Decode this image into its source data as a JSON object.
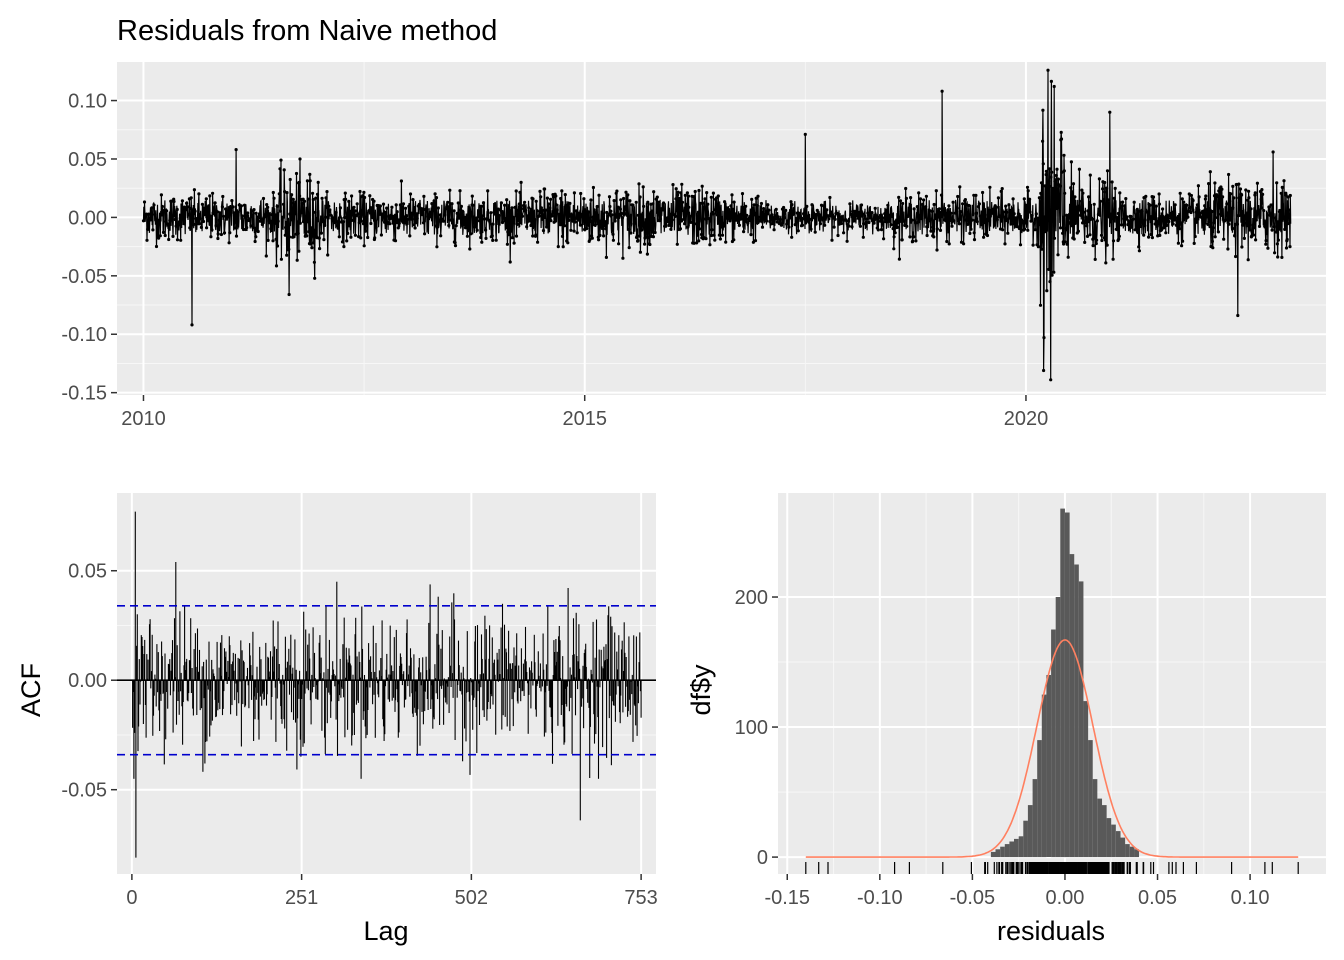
{
  "title": "Residuals from Naive method",
  "chart_data": [
    {
      "type": "line",
      "panel": "time-series",
      "title": "Residuals from Naive method",
      "xlabel": "",
      "ylabel": "",
      "xlim": [
        2009.7,
        2023.4
      ],
      "ylim": [
        -0.152,
        0.133
      ],
      "x_ticks": [
        2010,
        2015,
        2020
      ],
      "x_tick_labels": [
        "2010",
        "2015",
        "2020"
      ],
      "y_ticks": [
        -0.15,
        -0.1,
        -0.05,
        0.0,
        0.05,
        0.1
      ],
      "y_tick_labels": [
        "-0.15",
        "-0.10",
        "-0.05",
        "0.00",
        "0.05",
        "0.10"
      ],
      "grid": true,
      "x_range": [
        2010.0,
        2023.0
      ],
      "notable_points": [
        {
          "x": 2010.55,
          "y": -0.092
        },
        {
          "x": 2011.05,
          "y": 0.058
        },
        {
          "x": 2011.65,
          "y": -0.066
        },
        {
          "x": 2017.5,
          "y": 0.071
        },
        {
          "x": 2019.05,
          "y": 0.108
        },
        {
          "x": 2020.2,
          "y": -0.131
        },
        {
          "x": 2020.25,
          "y": 0.126
        },
        {
          "x": 2020.28,
          "y": -0.139
        },
        {
          "x": 2020.32,
          "y": 0.112
        },
        {
          "x": 2020.95,
          "y": 0.09
        },
        {
          "x": 2022.4,
          "y": -0.084
        },
        {
          "x": 2022.8,
          "y": 0.056
        }
      ]
    },
    {
      "type": "bar",
      "panel": "acf",
      "xlabel": "Lag",
      "ylabel": "ACF",
      "xlim": [
        -22,
        775
      ],
      "ylim": [
        -0.0885,
        0.0855
      ],
      "x_ticks": [
        0,
        251,
        502,
        753
      ],
      "x_tick_labels": [
        "0",
        "251",
        "502",
        "753"
      ],
      "y_ticks": [
        -0.05,
        0.0,
        0.05
      ],
      "y_tick_labels": [
        "-0.05",
        "0.00",
        "0.05"
      ],
      "confidence_bounds": [
        -0.034,
        0.034
      ],
      "max_lag": 753,
      "notable_lags": [
        {
          "lag": 5,
          "value": 0.077
        },
        {
          "lag": 6,
          "value": -0.081
        },
        {
          "lag": 65,
          "value": 0.054
        },
        {
          "lag": 663,
          "value": -0.064
        }
      ],
      "grid": true,
      "colors": {
        "bars": "#000000",
        "bounds": "#0000cc"
      }
    },
    {
      "type": "bar",
      "panel": "histogram",
      "xlabel": "residuals",
      "ylabel": "df$y",
      "xlim": [
        -0.155,
        0.141
      ],
      "ylim": [
        -13,
        280
      ],
      "x_ticks": [
        -0.15,
        -0.1,
        -0.05,
        0.0,
        0.05,
        0.1
      ],
      "x_tick_labels": [
        "-0.15",
        "-0.10",
        "-0.05",
        "0.00",
        "0.05",
        "0.10"
      ],
      "y_ticks": [
        0,
        100,
        200
      ],
      "y_tick_labels": [
        "0",
        "100",
        "200"
      ],
      "bin_width": 0.0025,
      "bin_centers": [
        -0.03875,
        -0.03625,
        -0.03375,
        -0.03125,
        -0.02875,
        -0.02625,
        -0.02375,
        -0.02125,
        -0.01875,
        -0.01625,
        -0.01375,
        -0.01125,
        -0.00875,
        -0.00625,
        -0.00375,
        -0.00125,
        0.00125,
        0.00375,
        0.00625,
        0.00875,
        0.01125,
        0.01375,
        0.01625,
        0.01875,
        0.02125,
        0.02375,
        0.02625,
        0.02875,
        0.03125,
        0.03375,
        0.03625,
        0.03875
      ],
      "counts": [
        4,
        6,
        8,
        10,
        12,
        14,
        16,
        28,
        40,
        60,
        90,
        125,
        140,
        175,
        200,
        268,
        265,
        233,
        225,
        212,
        120,
        90,
        60,
        45,
        40,
        30,
        25,
        20,
        15,
        10,
        8,
        6
      ],
      "normal_curve": {
        "mean": 0.0,
        "sd": 0.0151,
        "peak": 167
      },
      "rug_range": [
        -0.14,
        0.126
      ],
      "grid": true,
      "colors": {
        "bars": "#595959",
        "curve": "#ff8060"
      }
    }
  ]
}
